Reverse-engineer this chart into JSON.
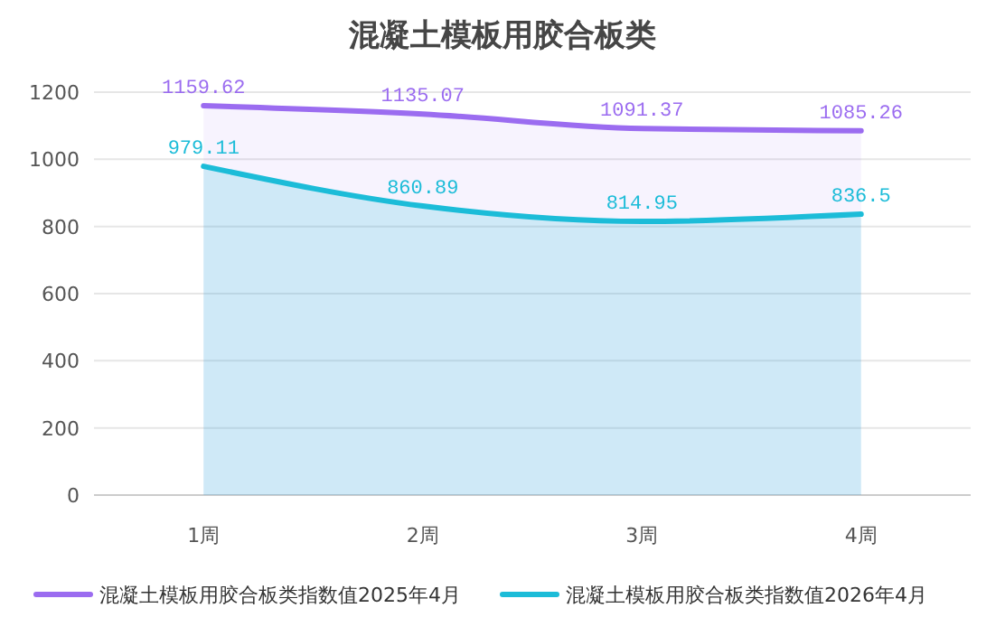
{
  "chart_data": {
    "type": "area",
    "title": "混凝土模板用胶合板类",
    "categories": [
      "1周",
      "2周",
      "3周",
      "4周"
    ],
    "series": [
      {
        "name": "混凝土模板用胶合板类指数值2025年4月",
        "color": "#9b6cf0",
        "values": [
          1159.62,
          1135.07,
          1091.37,
          1085.26
        ]
      },
      {
        "name": "混凝土模板用胶合板类指数值2026年4月",
        "color": "#1cbcd8",
        "values": [
          979.11,
          860.89,
          814.95,
          836.5
        ]
      }
    ],
    "ylim": [
      0,
      1200
    ],
    "yticks": [
      0,
      200,
      400,
      600,
      800,
      1000,
      1200
    ],
    "grid": "y",
    "legend": "bottom",
    "data_labels": true
  }
}
